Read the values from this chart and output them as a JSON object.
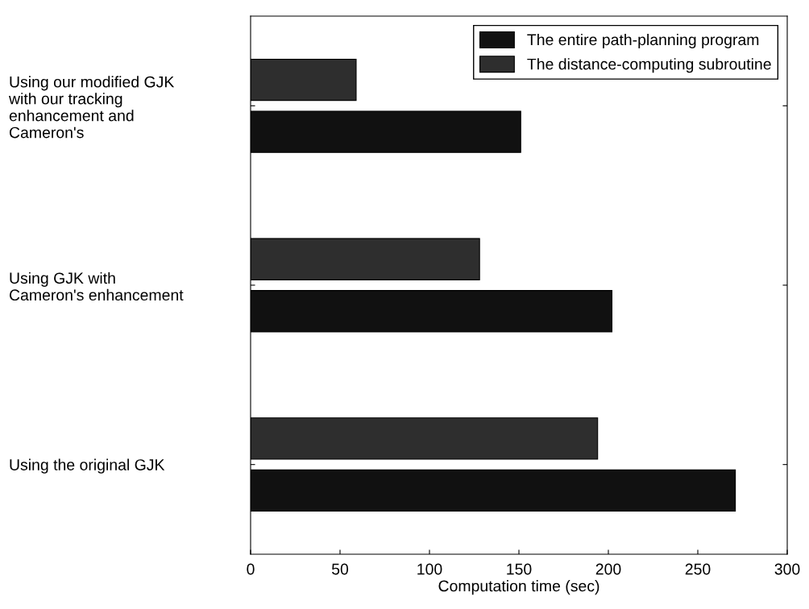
{
  "chart_data": {
    "type": "bar",
    "orientation": "horizontal",
    "categories": [
      "Using our modified GJK\nwith our tracking\nenhancement and\nCameron's",
      "Using GJK with\nCameron's enhancement",
      "Using the original GJK"
    ],
    "series": [
      {
        "name": "The entire path-planning program",
        "color": "#111111",
        "values": [
          151,
          202,
          271
        ]
      },
      {
        "name": "The distance-computing subroutine",
        "color": "#2e2e2e",
        "values": [
          59,
          128,
          194
        ]
      }
    ],
    "xlabel": "Computation time (sec)",
    "xlim": [
      0,
      300
    ],
    "xticks": [
      0,
      50,
      100,
      150,
      200,
      250,
      300
    ],
    "legend": "top right",
    "grid": false
  }
}
